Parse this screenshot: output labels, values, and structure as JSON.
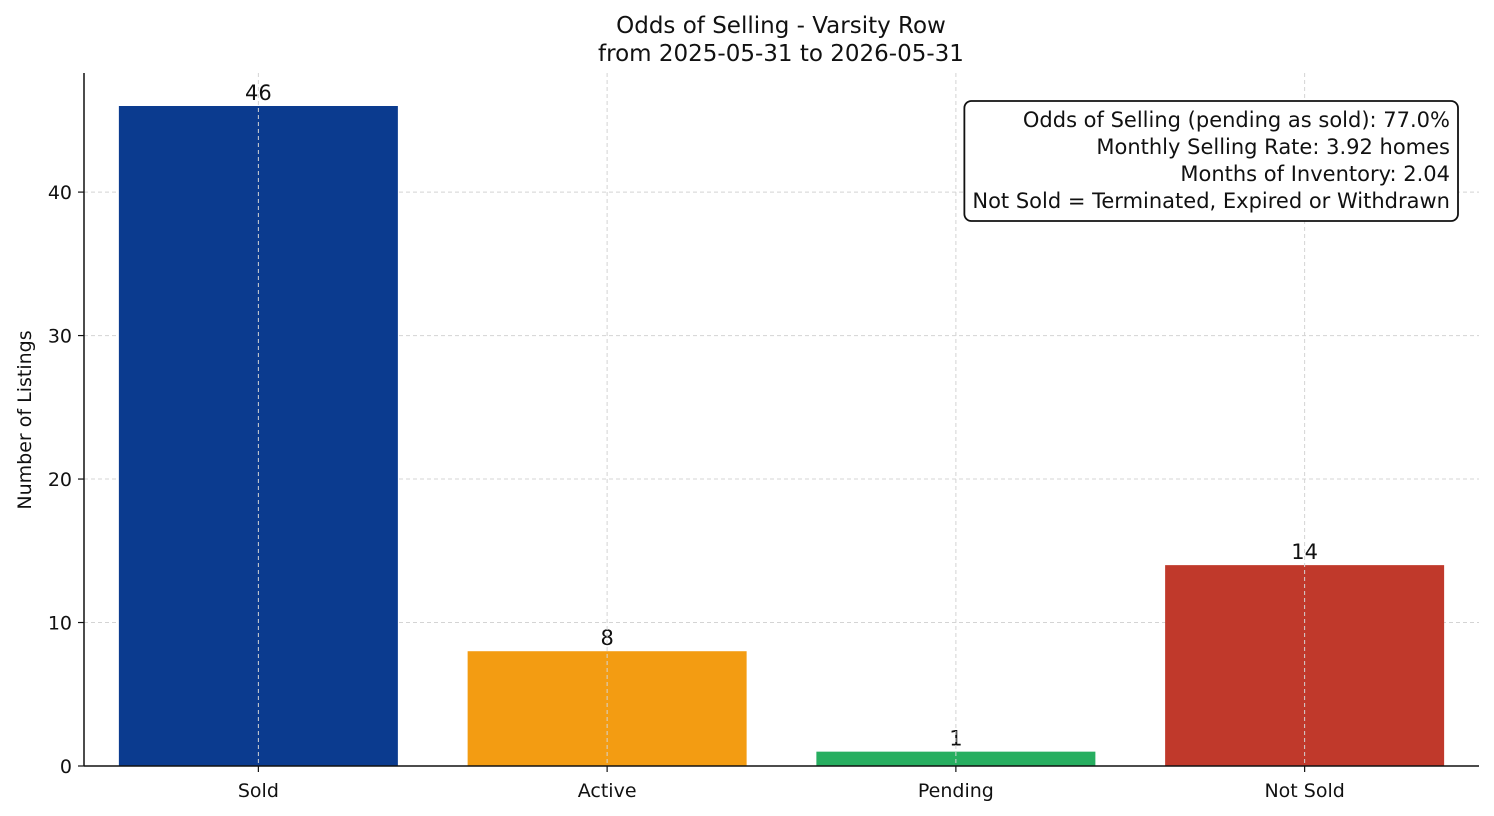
{
  "chart_data": {
    "type": "bar",
    "title": "Odds of Selling - Varsity Row",
    "subtitle": "from 2025-05-31 to 2026-05-31",
    "xlabel": "",
    "ylabel": "Number of Listings",
    "categories": [
      "Sold",
      "Active",
      "Pending",
      "Not Sold"
    ],
    "values": [
      46,
      8,
      1,
      14
    ],
    "data_labels": [
      "46",
      "8",
      "1",
      "14"
    ],
    "colors": [
      "#0b3b8f",
      "#f39c12",
      "#27ae60",
      "#c0392b"
    ],
    "ylim": [
      0,
      48.3
    ],
    "yticks": [
      0,
      10,
      20,
      30,
      40
    ],
    "grid": true,
    "annotation_lines": [
      "Odds of Selling (pending as sold): 77.0%",
      "Monthly Selling Rate: 3.92 homes",
      "Months of Inventory: 2.04",
      "Not Sold = Terminated, Expired or Withdrawn"
    ],
    "annotation_placement": "top-right"
  }
}
